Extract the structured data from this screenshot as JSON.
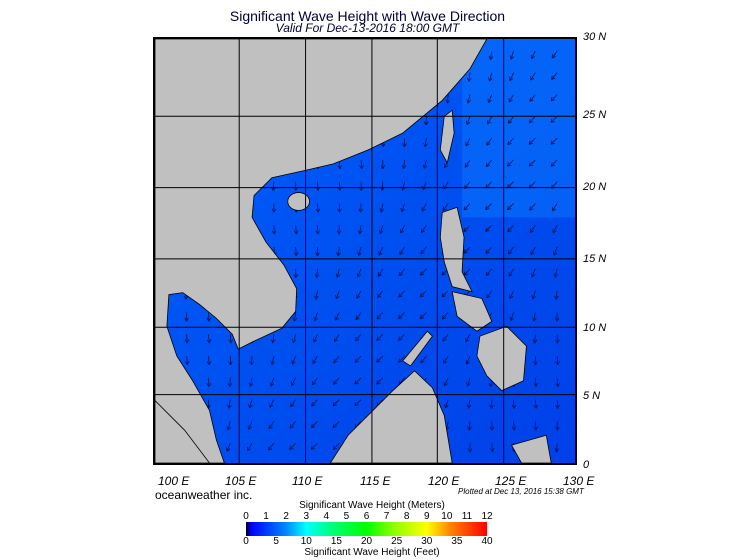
{
  "title": "Significant Wave Height with Wave Direction",
  "subtitle": "Valid For Dec-13-2016 18:00 GMT",
  "lat_labels": [
    "30 N",
    "25 N",
    "20 N",
    "15 N",
    "10 N",
    "5 N",
    "0"
  ],
  "lon_labels": [
    "100 E",
    "105 E",
    "110 E",
    "115 E",
    "120 E",
    "125 E",
    "130 E"
  ],
  "brand": "oceanweather inc.",
  "plotted": "Plotted at Dec 13, 2016 15:38 GMT",
  "colorbar": {
    "meters_title": "Significant Wave Height (Meters)",
    "feet_title": "Significant Wave Height (Feet)",
    "meters": [
      "0",
      "1",
      "2",
      "3",
      "4",
      "5",
      "6",
      "7",
      "8",
      "9",
      "10",
      "11",
      "12"
    ],
    "feet": [
      "0",
      "5",
      "10",
      "15",
      "20",
      "25",
      "30",
      "35",
      "40"
    ]
  },
  "colors": {
    "land": "#c0c0c0",
    "ocean_low": "#0040ff",
    "ocean_mid": "#0070ff"
  }
}
